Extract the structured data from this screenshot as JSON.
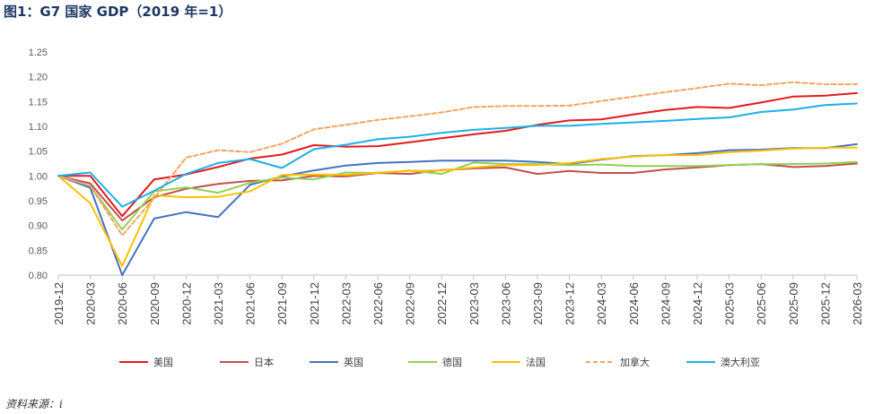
{
  "title": "图1：G7 国家 GDP（2019 年=1）",
  "source": "资料来源：i",
  "chart_data": {
    "type": "line",
    "ylim": [
      0.8,
      1.25
    ],
    "yticks": [
      "0.80",
      "0.85",
      "0.90",
      "0.95",
      "1.00",
      "1.05",
      "1.10",
      "1.15",
      "1.20",
      "1.25"
    ],
    "categories": [
      "2019-12",
      "2020-03",
      "2020-06",
      "2020-09",
      "2020-12",
      "2021-03",
      "2021-06",
      "2021-09",
      "2021-12",
      "2022-03",
      "2022-06",
      "2022-09",
      "2022-12",
      "2023-03",
      "2023-06",
      "2023-09",
      "2023-12",
      "2024-03",
      "2024-06",
      "2024-09",
      "2024-12",
      "2025-03",
      "2025-06",
      "2025-09",
      "2025-12",
      "2026-03"
    ],
    "grid": false,
    "legend_position": "bottom",
    "series": [
      {
        "name": "美国",
        "color": "#e41a1c",
        "dashed": false,
        "values": [
          1.0,
          1.0,
          0.919,
          0.993,
          1.003,
          1.018,
          1.035,
          1.043,
          1.062,
          1.059,
          1.06,
          1.068,
          1.076,
          1.084,
          1.091,
          1.103,
          1.112,
          1.114,
          1.124,
          1.133,
          1.139,
          1.137,
          1.148,
          1.16,
          1.162,
          1.167
        ]
      },
      {
        "name": "日本",
        "color": "#c0504d",
        "dashed": false,
        "values": [
          1.0,
          0.985,
          0.91,
          0.957,
          0.974,
          0.984,
          0.99,
          0.991,
          1.0,
          0.999,
          1.006,
          1.004,
          1.012,
          1.015,
          1.017,
          1.004,
          1.01,
          1.006,
          1.006,
          1.013,
          1.017,
          1.022,
          1.024,
          1.018,
          1.02,
          1.025
        ]
      },
      {
        "name": "英国",
        "color": "#4472c4",
        "dashed": false,
        "values": [
          1.0,
          0.976,
          0.79,
          0.914,
          0.927,
          0.917,
          0.982,
          0.999,
          1.011,
          1.021,
          1.026,
          1.028,
          1.031,
          1.031,
          1.031,
          1.028,
          1.024,
          1.033,
          1.04,
          1.042,
          1.046,
          1.052,
          1.053,
          1.056,
          1.056,
          1.064
        ]
      },
      {
        "name": "德国",
        "color": "#92d050",
        "dashed": false,
        "values": [
          1.0,
          0.98,
          0.892,
          0.969,
          0.977,
          0.966,
          0.986,
          0.997,
          0.993,
          1.007,
          1.006,
          1.011,
          1.004,
          1.027,
          1.024,
          1.024,
          1.022,
          1.023,
          1.02,
          1.02,
          1.02,
          1.022,
          1.024,
          1.024,
          1.025,
          1.028
        ]
      },
      {
        "name": "法国",
        "color": "#ffc000",
        "dashed": false,
        "values": [
          1.0,
          0.945,
          0.818,
          0.961,
          0.957,
          0.958,
          0.969,
          1.002,
          1.003,
          1.002,
          1.007,
          1.01,
          1.011,
          1.017,
          1.022,
          1.022,
          1.026,
          1.034,
          1.039,
          1.042,
          1.042,
          1.048,
          1.051,
          1.055,
          1.057,
          1.057
        ]
      },
      {
        "name": "加拿大",
        "color": "#f4a460",
        "dashed": true,
        "values": [
          1.0,
          0.98,
          0.88,
          0.955,
          1.037,
          1.052,
          1.048,
          1.065,
          1.094,
          1.103,
          1.113,
          1.12,
          1.128,
          1.139,
          1.141,
          1.141,
          1.142,
          1.151,
          1.16,
          1.169,
          1.177,
          1.186,
          1.183,
          1.189,
          1.185,
          1.185
        ]
      },
      {
        "name": "澳大利亚",
        "color": "#1ab0e8",
        "dashed": false,
        "values": [
          1.0,
          1.007,
          0.938,
          0.97,
          1.004,
          1.026,
          1.034,
          1.016,
          1.054,
          1.063,
          1.074,
          1.079,
          1.087,
          1.093,
          1.097,
          1.101,
          1.101,
          1.105,
          1.108,
          1.111,
          1.115,
          1.118,
          1.129,
          1.134,
          1.143,
          1.146
        ]
      }
    ]
  }
}
